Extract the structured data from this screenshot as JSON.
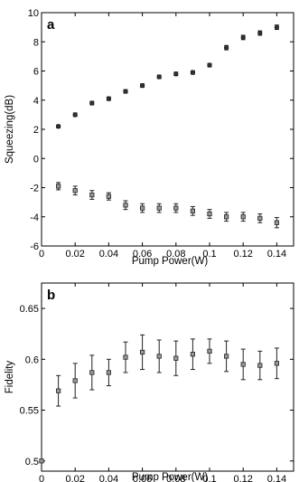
{
  "chart_data": [
    {
      "type": "scatter",
      "panel_label": "a",
      "xlabel": "Pump Power(W)",
      "ylabel": "Squeezing(dB)",
      "xlim": [
        0,
        0.15
      ],
      "ylim": [
        -6,
        10
      ],
      "xticks": [
        "0",
        "0.02",
        "0.04",
        "0.06",
        "0.08",
        "0.1",
        "0.12",
        "0.14"
      ],
      "yticks": [
        "-6",
        "-4",
        "-2",
        "0",
        "2",
        "4",
        "6",
        "8",
        "10"
      ],
      "series": [
        {
          "marker": "filled-circle",
          "x": [
            0.01,
            0.02,
            0.03,
            0.04,
            0.05,
            0.06,
            0.07,
            0.08,
            0.09,
            0.1,
            0.11,
            0.12,
            0.13,
            0.14
          ],
          "y": [
            2.2,
            3.0,
            3.8,
            4.1,
            4.6,
            5.0,
            5.6,
            5.8,
            5.9,
            6.4,
            7.6,
            8.3,
            8.6,
            9.0
          ],
          "err": [
            0.1,
            0.12,
            0.12,
            0.12,
            0.12,
            0.12,
            0.12,
            0.12,
            0.12,
            0.12,
            0.15,
            0.15,
            0.15,
            0.15
          ]
        },
        {
          "marker": "square",
          "x": [
            0.01,
            0.02,
            0.03,
            0.04,
            0.05,
            0.06,
            0.07,
            0.08,
            0.09,
            0.1,
            0.11,
            0.12,
            0.13,
            0.14
          ],
          "y": [
            -1.9,
            -2.2,
            -2.5,
            -2.6,
            -3.2,
            -3.4,
            -3.4,
            -3.4,
            -3.6,
            -3.8,
            -4.0,
            -4.0,
            -4.1,
            -4.4
          ],
          "err": [
            0.25,
            0.3,
            0.3,
            0.25,
            0.3,
            0.3,
            0.3,
            0.3,
            0.3,
            0.3,
            0.3,
            0.3,
            0.3,
            0.35
          ]
        }
      ]
    },
    {
      "type": "scatter",
      "panel_label": "b",
      "xlabel": "Pump Power(W)",
      "ylabel": "Fidelity",
      "xlim": [
        0,
        0.15
      ],
      "ylim": [
        0.49,
        0.675
      ],
      "xticks": [
        "0",
        "0.02",
        "0.04",
        "0.06",
        "0.08",
        "0.1",
        "0.12",
        "0.14"
      ],
      "yticks": [
        "0.5",
        "0.55",
        "0.6",
        "0.65"
      ],
      "series": [
        {
          "marker": "square",
          "x": [
            0,
            0.01,
            0.02,
            0.03,
            0.04,
            0.05,
            0.06,
            0.07,
            0.08,
            0.09,
            0.1,
            0.11,
            0.12,
            0.13,
            0.14
          ],
          "y": [
            0.5,
            0.569,
            0.579,
            0.587,
            0.587,
            0.602,
            0.607,
            0.603,
            0.601,
            0.605,
            0.608,
            0.603,
            0.595,
            0.594,
            0.596
          ],
          "err": [
            0,
            0.015,
            0.017,
            0.017,
            0.013,
            0.015,
            0.017,
            0.016,
            0.017,
            0.015,
            0.012,
            0.015,
            0.015,
            0.014,
            0.015
          ]
        }
      ]
    }
  ]
}
